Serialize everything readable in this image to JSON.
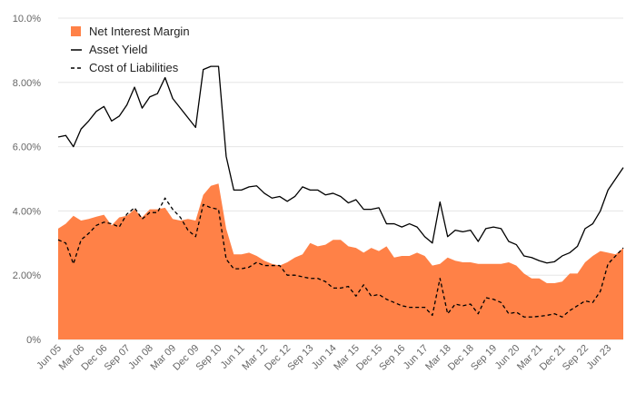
{
  "chart_data": {
    "type": "line",
    "title": "",
    "xlabel": "",
    "ylabel": "",
    "ylim": [
      0,
      10
    ],
    "y_ticks": [
      {
        "value": 0,
        "label": "0%"
      },
      {
        "value": 2,
        "label": "2.00%"
      },
      {
        "value": 4,
        "label": "4.00%"
      },
      {
        "value": 6,
        "label": "6.00%"
      },
      {
        "value": 8,
        "label": "8.00%"
      },
      {
        "value": 10,
        "label": "10.0%"
      }
    ],
    "x_ticks": [
      {
        "index": 0,
        "label": "Jun 05"
      },
      {
        "index": 3,
        "label": "Mar 06"
      },
      {
        "index": 6,
        "label": "Dec 06"
      },
      {
        "index": 9,
        "label": "Sep 07"
      },
      {
        "index": 12,
        "label": "Jun 08"
      },
      {
        "index": 15,
        "label": "Mar 09"
      },
      {
        "index": 18,
        "label": "Dec 09"
      },
      {
        "index": 21,
        "label": "Sep 10"
      },
      {
        "index": 24,
        "label": "Jun 11"
      },
      {
        "index": 27,
        "label": "Mar 12"
      },
      {
        "index": 30,
        "label": "Dec 12"
      },
      {
        "index": 33,
        "label": "Sep 13"
      },
      {
        "index": 36,
        "label": "Jun 14"
      },
      {
        "index": 39,
        "label": "Mar 15"
      },
      {
        "index": 42,
        "label": "Dec 15"
      },
      {
        "index": 45,
        "label": "Sep 16"
      },
      {
        "index": 48,
        "label": "Jun 17"
      },
      {
        "index": 51,
        "label": "Mar 18"
      },
      {
        "index": 54,
        "label": "Dec 18"
      },
      {
        "index": 57,
        "label": "Sep 19"
      },
      {
        "index": 60,
        "label": "Jun 20"
      },
      {
        "index": 63,
        "label": "Mar 21"
      },
      {
        "index": 66,
        "label": "Dec 21"
      },
      {
        "index": 69,
        "label": "Sep 22"
      },
      {
        "index": 72,
        "label": "Jun 23"
      }
    ],
    "legend": {
      "placement": "top-left",
      "entries": [
        "Net Interest Margin",
        "Asset Yield",
        "Cost of Liabilities"
      ]
    },
    "colors": {
      "nim": "#ff8147",
      "asset": "#000000",
      "cost": "#000000",
      "grid": "#e6e6e6",
      "tick_text": "#666666"
    },
    "series": [
      {
        "name": "Net Interest Margin",
        "style": "area",
        "values": [
          3.45,
          3.6,
          3.85,
          3.7,
          3.75,
          3.82,
          3.88,
          3.55,
          3.8,
          3.85,
          4.05,
          3.8,
          4.05,
          4.05,
          4.1,
          3.75,
          3.7,
          3.75,
          3.7,
          4.5,
          4.78,
          4.85,
          3.45,
          2.65,
          2.65,
          2.7,
          2.6,
          2.45,
          2.35,
          2.3,
          2.4,
          2.55,
          2.65,
          3.0,
          2.9,
          2.95,
          3.1,
          3.1,
          2.9,
          2.85,
          2.7,
          2.85,
          2.75,
          2.9,
          2.55,
          2.6,
          2.6,
          2.7,
          2.6,
          2.3,
          2.35,
          2.55,
          2.45,
          2.4,
          2.4,
          2.35,
          2.35,
          2.35,
          2.35,
          2.4,
          2.3,
          2.05,
          1.9,
          1.9,
          1.75,
          1.75,
          1.8,
          2.05,
          2.05,
          2.4,
          2.6,
          2.75,
          2.7,
          2.65,
          2.85
        ]
      },
      {
        "name": "Asset Yield",
        "style": "solid",
        "values": [
          6.3,
          6.35,
          6.0,
          6.55,
          6.8,
          7.1,
          7.25,
          6.8,
          6.95,
          7.3,
          7.85,
          7.2,
          7.55,
          7.65,
          8.15,
          7.5,
          7.2,
          6.9,
          6.6,
          8.4,
          8.5,
          8.5,
          5.7,
          4.65,
          4.65,
          4.75,
          4.78,
          4.55,
          4.4,
          4.45,
          4.3,
          4.45,
          4.75,
          4.65,
          4.65,
          4.5,
          4.55,
          4.45,
          4.25,
          4.35,
          4.05,
          4.05,
          4.1,
          3.6,
          3.6,
          3.5,
          3.6,
          3.5,
          3.2,
          3.0,
          4.28,
          3.2,
          3.4,
          3.35,
          3.4,
          3.05,
          3.45,
          3.5,
          3.45,
          3.05,
          2.95,
          2.6,
          2.55,
          2.45,
          2.38,
          2.42,
          2.6,
          2.7,
          2.9,
          3.45,
          3.6,
          4.0,
          4.65,
          5.0,
          5.35
        ]
      },
      {
        "name": "Cost of Liabilities",
        "style": "dashed",
        "values": [
          3.1,
          3.0,
          2.35,
          3.1,
          3.3,
          3.55,
          3.65,
          3.6,
          3.5,
          3.9,
          4.1,
          3.75,
          3.95,
          3.95,
          4.4,
          4.05,
          3.8,
          3.4,
          3.2,
          4.2,
          4.1,
          4.05,
          2.5,
          2.2,
          2.2,
          2.25,
          2.4,
          2.3,
          2.3,
          2.3,
          2.0,
          2.0,
          1.95,
          1.9,
          1.9,
          1.8,
          1.6,
          1.6,
          1.65,
          1.35,
          1.7,
          1.35,
          1.4,
          1.25,
          1.15,
          1.05,
          1.0,
          1.0,
          1.0,
          0.75,
          1.9,
          0.8,
          1.1,
          1.05,
          1.1,
          0.8,
          1.3,
          1.25,
          1.15,
          0.8,
          0.85,
          0.7,
          0.7,
          0.72,
          0.75,
          0.8,
          0.7,
          0.9,
          1.05,
          1.2,
          1.15,
          1.5,
          2.35,
          2.6,
          2.85
        ]
      }
    ]
  }
}
